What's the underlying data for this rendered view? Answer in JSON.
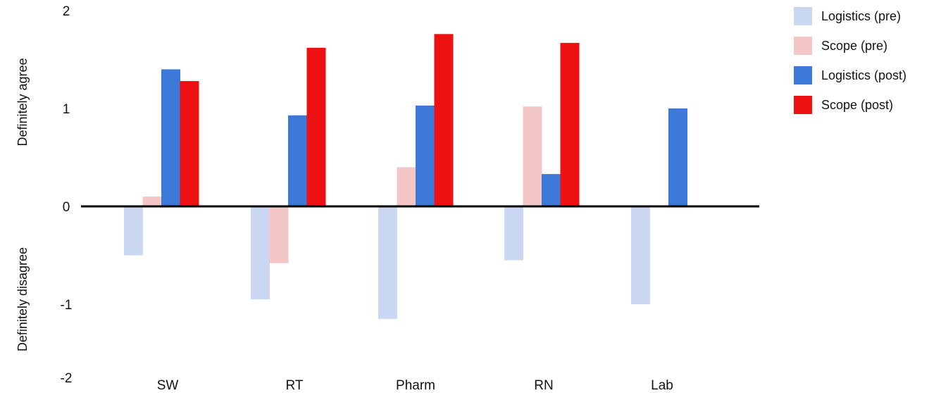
{
  "chart_data": {
    "type": "bar",
    "categories": [
      "SW",
      "RT",
      "Pharm",
      "RN",
      "Lab"
    ],
    "series": [
      {
        "name": "Logistics (pre)",
        "color": "#c9d7f2",
        "values": [
          -0.5,
          -0.95,
          -1.15,
          -0.55,
          -1.0
        ]
      },
      {
        "name": "Scope (pre)",
        "color": "#f4c7c7",
        "values": [
          0.1,
          -0.58,
          0.4,
          1.02,
          null
        ]
      },
      {
        "name": "Logistics (post)",
        "color": "#3b78d8",
        "values": [
          1.4,
          0.93,
          1.03,
          0.33,
          1.0
        ]
      },
      {
        "name": "Scope (post)",
        "color": "#ee1111",
        "values": [
          1.28,
          1.62,
          1.76,
          1.67,
          null
        ]
      }
    ],
    "ylim": [
      -2,
      2
    ],
    "yticks": [
      "2",
      "1",
      "0",
      "-1",
      "-2"
    ],
    "ylabel_top": "Definitely agree",
    "ylabel_bottom": "Definitely disagree",
    "legend_position": "top-right",
    "grid": false
  }
}
